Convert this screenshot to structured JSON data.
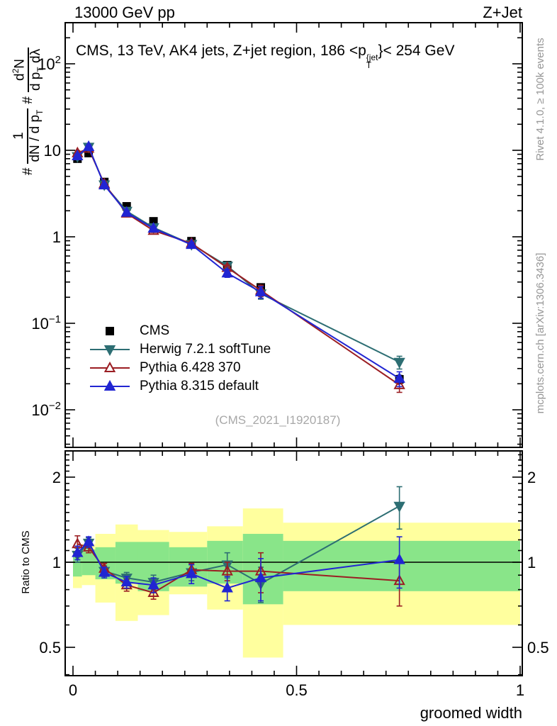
{
  "header": {
    "beam": "13000 GeV pp",
    "process": "Z+Jet"
  },
  "title": {
    "prefix": "CMS, 13 TeV, AK4 jets, Z+jet region, 186 <p",
    "sup": "{jet",
    "sub": "T",
    "suffix": "}< 254 GeV"
  },
  "watermark": "(CMS_2021_I1920187)",
  "side_notes": {
    "top": "Rivet 4.1.0, ≥ 100k events",
    "bottom": "mcplots.cern.ch [arXiv:1306.3436]"
  },
  "ratio_label": "Ratio to CMS",
  "xlabel": "groomed width",
  "ylabel": {
    "hash1": "#",
    "frac1_num": "1",
    "frac1_den": "dN / d p",
    "frac1_den_sub": "T",
    "hash2": "#",
    "frac2_num_pre": "d",
    "frac2_num_sup": "2",
    "frac2_num_post": "N",
    "frac2_den_pre": "d p",
    "frac2_den_sub": "T",
    "frac2_den_post": " dλ"
  },
  "legend": {
    "items": [
      {
        "label": "CMS"
      },
      {
        "label": "Herwig 7.2.1 softTune"
      },
      {
        "label": "Pythia 6.428 370"
      },
      {
        "label": "Pythia 8.315 default"
      }
    ]
  },
  "chart_data": {
    "type": "line",
    "title": "CMS, 13 TeV, AK4 jets, Z+jet region, 186 < pT{jet} < 254 GeV",
    "xlabel": "groomed width",
    "x": [
      0.01,
      0.035,
      0.07,
      0.12,
      0.18,
      0.265,
      0.345,
      0.42,
      0.73
    ],
    "xaxis": {
      "range": [
        0,
        1
      ],
      "major_ticks": [
        {
          "v": 0,
          "label": "0"
        },
        {
          "v": 0.5,
          "label": "0.5"
        },
        {
          "v": 1,
          "label": "1"
        }
      ],
      "minor_step": 0.05
    },
    "main_yaxis": {
      "scale": "log",
      "range": [
        0.004,
        280
      ],
      "ticks": [
        {
          "v": 100,
          "base": "10",
          "exp": "2"
        },
        {
          "v": 10,
          "base": "10",
          "exp": ""
        },
        {
          "v": 1,
          "base": "1",
          "exp": ""
        },
        {
          "v": 0.1,
          "base": "10",
          "exp": "−1"
        },
        {
          "v": 0.01,
          "base": "10",
          "exp": "−2"
        }
      ]
    },
    "ratio_yaxis": {
      "scale": "log",
      "range": [
        0.4,
        2.46
      ],
      "reference_line": 1,
      "ticks": [
        {
          "v": 2,
          "label": "2"
        },
        {
          "v": 1,
          "label": "1"
        },
        {
          "v": 0.5,
          "label": "0.5"
        }
      ]
    },
    "series": [
      {
        "name": "CMS",
        "kind": "data",
        "color": "#000000",
        "marker": "square",
        "fill": "filled",
        "line": false,
        "values": [
          8.0,
          9.3,
          4.3,
          2.25,
          1.51,
          0.89,
          0.47,
          0.26,
          0.0225
        ],
        "errors": [
          0.4,
          0.45,
          0.2,
          0.1,
          0.07,
          0.04,
          0.025,
          0.015,
          0.0025
        ]
      },
      {
        "name": "Herwig 7.2.1 softTune",
        "kind": "mc",
        "color": "#2d6e73",
        "marker": "triangle-down",
        "fill": "filled",
        "line": true,
        "values": [
          8.5,
          10.9,
          4.0,
          1.98,
          1.28,
          0.82,
          0.46,
          0.22,
          0.0356
        ],
        "errors": [
          0.45,
          0.45,
          0.17,
          0.11,
          0.08,
          0.05,
          0.05,
          0.03,
          0.006
        ],
        "ratio": [
          1.06,
          1.17,
          0.93,
          0.88,
          0.85,
          0.92,
          0.98,
          0.84,
          1.58
        ],
        "ratio_errors": [
          0.06,
          0.05,
          0.04,
          0.04,
          0.05,
          0.06,
          0.1,
          0.12,
          0.27
        ]
      },
      {
        "name": "Pythia 6.428 370",
        "kind": "mc",
        "color": "#9b1e23",
        "marker": "triangle-up",
        "fill": "open",
        "line": true,
        "values": [
          9.3,
          10.5,
          4.09,
          1.87,
          1.18,
          0.84,
          0.44,
          0.24,
          0.0194
        ],
        "errors": [
          0.6,
          0.5,
          0.17,
          0.1,
          0.06,
          0.05,
          0.03,
          0.035,
          0.0035
        ],
        "ratio": [
          1.16,
          1.13,
          0.95,
          0.83,
          0.78,
          0.94,
          0.93,
          0.93,
          0.86
        ],
        "ratio_errors": [
          0.08,
          0.05,
          0.04,
          0.04,
          0.04,
          0.05,
          0.07,
          0.15,
          0.16
        ]
      },
      {
        "name": "Pythia 8.315 default",
        "kind": "mc",
        "color": "#2125d2",
        "marker": "triangle-up",
        "fill": "filled",
        "line": true,
        "values": [
          8.6,
          11.0,
          3.96,
          1.91,
          1.25,
          0.81,
          0.38,
          0.23,
          0.023
        ],
        "errors": [
          0.45,
          0.5,
          0.17,
          0.1,
          0.07,
          0.05,
          0.04,
          0.035,
          0.0045
        ],
        "ratio": [
          1.08,
          1.18,
          0.92,
          0.85,
          0.83,
          0.91,
          0.81,
          0.88,
          1.02
        ],
        "ratio_errors": [
          0.06,
          0.05,
          0.04,
          0.04,
          0.05,
          0.07,
          0.08,
          0.15,
          0.21
        ]
      }
    ],
    "bands": {
      "edges": [
        0,
        0.02,
        0.05,
        0.095,
        0.145,
        0.215,
        0.3,
        0.38,
        0.47,
        1.0
      ],
      "yellow": [
        [
          0.81,
          1.1
        ],
        [
          0.83,
          1.16
        ],
        [
          0.72,
          1.26
        ],
        [
          0.62,
          1.36
        ],
        [
          0.65,
          1.3
        ],
        [
          0.77,
          1.28
        ],
        [
          0.68,
          1.34
        ],
        [
          0.46,
          1.55
        ],
        [
          0.6,
          1.38
        ]
      ],
      "green": [
        [
          0.89,
          1.06
        ],
        [
          0.9,
          1.11
        ],
        [
          0.87,
          1.13
        ],
        [
          0.84,
          1.18
        ],
        [
          0.79,
          1.18
        ],
        [
          0.82,
          1.13
        ],
        [
          0.84,
          1.19
        ],
        [
          0.71,
          1.26
        ],
        [
          0.79,
          1.19
        ]
      ],
      "yellow_color": "#ffff9e",
      "green_color": "#89e589"
    }
  }
}
